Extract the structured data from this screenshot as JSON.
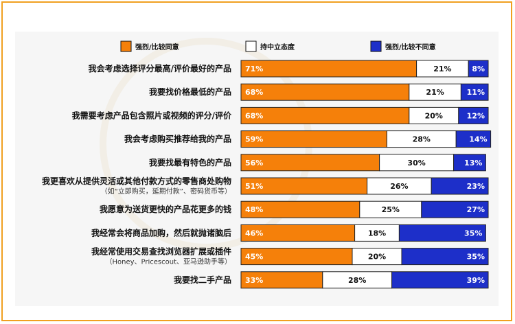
{
  "chart_data": {
    "type": "bar",
    "stacked": true,
    "orientation": "horizontal",
    "normalized_to": 100,
    "legend": [
      {
        "name": "强烈/比较同意",
        "color": "#f5800a"
      },
      {
        "name": "持中立态度",
        "color": "#ffffff"
      },
      {
        "name": "强烈/比较不同意",
        "color": "#1d2fc9"
      }
    ],
    "legend_position": "top",
    "categories": [
      {
        "label": "我会考虑选择评分最高/评价最好的产品",
        "sub": ""
      },
      {
        "label": "我要找价格最低的产品",
        "sub": ""
      },
      {
        "label": "我需要考虑产品包含照片或视频的评分/评价",
        "sub": ""
      },
      {
        "label": "我会考虑购买推荐给我的产品",
        "sub": ""
      },
      {
        "label": "我要找最有特色的产品",
        "sub": ""
      },
      {
        "label": "我更喜欢从提供灵活或其他付款方式的零售商处购物",
        "sub": "（如“立即购买，延期付款”、密码货币等）"
      },
      {
        "label": "我愿意为送货更快的产品花更多的钱",
        "sub": ""
      },
      {
        "label": "我经常会将商品加购，然后就抛诸脑后",
        "sub": ""
      },
      {
        "label": "我经常使用交易查找浏览器扩展或插件",
        "sub": "（Honey、Pricescout、亚马逊助手等）"
      },
      {
        "label": "我要找二手产品",
        "sub": ""
      }
    ],
    "series": [
      {
        "name": "强烈/比较同意",
        "values": [
          71,
          68,
          68,
          59,
          56,
          51,
          48,
          46,
          45,
          33
        ]
      },
      {
        "name": "持中立态度",
        "values": [
          21,
          21,
          20,
          28,
          30,
          26,
          25,
          18,
          20,
          28
        ]
      },
      {
        "name": "强烈/比较不同意",
        "values": [
          8,
          11,
          12,
          14,
          13,
          23,
          27,
          35,
          35,
          39
        ]
      }
    ],
    "value_suffix": "%"
  }
}
